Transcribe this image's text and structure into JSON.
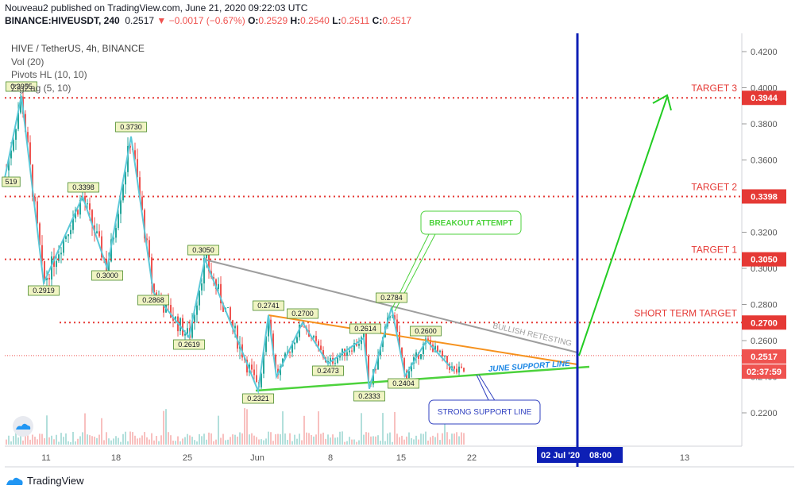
{
  "header": {
    "line1": "Nouveau2 published on TradingView.com, June 21, 2020 09:22:03 UTC",
    "symbol": "BINANCE:HIVEUSDT, 240",
    "price": "0.2517",
    "change": "−0.0017 (−0.67%)",
    "o_label": "O:",
    "o": "0.2529",
    "h_label": "H:",
    "h": "0.2540",
    "l_label": "L:",
    "l": "0.2511",
    "c_label": "C:",
    "c": "0.2517"
  },
  "legend": {
    "title": "HIVE / TetherUS, 4h, BINANCE",
    "vol": "Vol (20)",
    "pivots": "Pivots HL (10, 10)",
    "zigzag": "ZigZag (5, 10)"
  },
  "footer": {
    "brand": "TradingView"
  },
  "annotations": {
    "breakout": "BREAKOUT ATTEMPT",
    "strong_support": "STRONG SUPPORT LINE",
    "june_support": "JUNE SUPPORT LINE",
    "bullish": "BULLISH RETESTING",
    "cursor_date": "02 Jul '20",
    "cursor_time": "08:00",
    "countdown": "02:37:59"
  },
  "colors": {
    "candle_up": "#26a69a",
    "candle_down": "#ef5350",
    "zigzag": "#5bc8d8",
    "target_line": "#e53935",
    "cursor": "#0d1fb5",
    "arrow": "#22cc22",
    "support": "#4cd23c",
    "triangle_top": "#f6921e",
    "resistance": "#9e9e9e"
  },
  "chart_data": {
    "type": "candlestick",
    "title": "HIVE / TetherUS, 4h, BINANCE",
    "y_axis": {
      "ticks": [
        0.22,
        0.24,
        0.26,
        0.28,
        0.3,
        0.32,
        0.34,
        0.36,
        0.38,
        0.4,
        0.42
      ],
      "tick_labels": [
        "0.2200",
        "0.2400",
        "0.2600",
        "0.2800",
        "0.3000",
        "0.3200",
        "0.3400",
        "0.3600",
        "0.3800",
        "0.4000",
        "0.4200"
      ],
      "range": [
        0.205,
        0.432
      ]
    },
    "x_axis": {
      "tick_labels": [
        "11",
        "18",
        "25",
        "Jun",
        "8",
        "15",
        "22",
        "13"
      ]
    },
    "targets": [
      {
        "label": "TARGET 3",
        "value": "0.3944"
      },
      {
        "label": "TARGET 2",
        "value": "0.3398"
      },
      {
        "label": "TARGET 1",
        "value": "0.3050"
      },
      {
        "label": "SHORT TERM TARGET",
        "value": "0.2700"
      }
    ],
    "last_price": "0.2517",
    "pivot_labels": [
      "0.3955",
      "519",
      "0.3730",
      "0.3398",
      "0.3050",
      "0.3000",
      "0.2919",
      "0.2868",
      "0.2619",
      "0.2741",
      "0.2700",
      "0.2784",
      "0.2614",
      "0.2600",
      "0.2473",
      "0.2333",
      "0.2404",
      "0.2321"
    ],
    "zigzag_points": [
      [
        0.35,
        "May 5"
      ],
      [
        0.3955,
        "May 8"
      ],
      [
        0.2919,
        "May 10"
      ],
      [
        0.3398,
        "May 15"
      ],
      [
        0.3,
        "May 17"
      ],
      [
        0.373,
        "May 20"
      ],
      [
        0.2868,
        "May 23"
      ],
      [
        0.305,
        "May 26"
      ],
      [
        0.2619,
        "May 27"
      ],
      [
        0.2321,
        "Jun 1"
      ],
      [
        0.2741,
        "Jun 1"
      ],
      [
        0.24,
        "Jun 2"
      ],
      [
        0.27,
        "Jun 5"
      ],
      [
        0.2473,
        "Jun 8"
      ],
      [
        0.2614,
        "Jun 11"
      ],
      [
        0.2333,
        "Jun 12"
      ],
      [
        0.2784,
        "Jun 14"
      ],
      [
        0.2404,
        "Jun 15"
      ],
      [
        0.26,
        "Jun 17"
      ],
      [
        0.243,
        "Jun 20"
      ]
    ]
  }
}
